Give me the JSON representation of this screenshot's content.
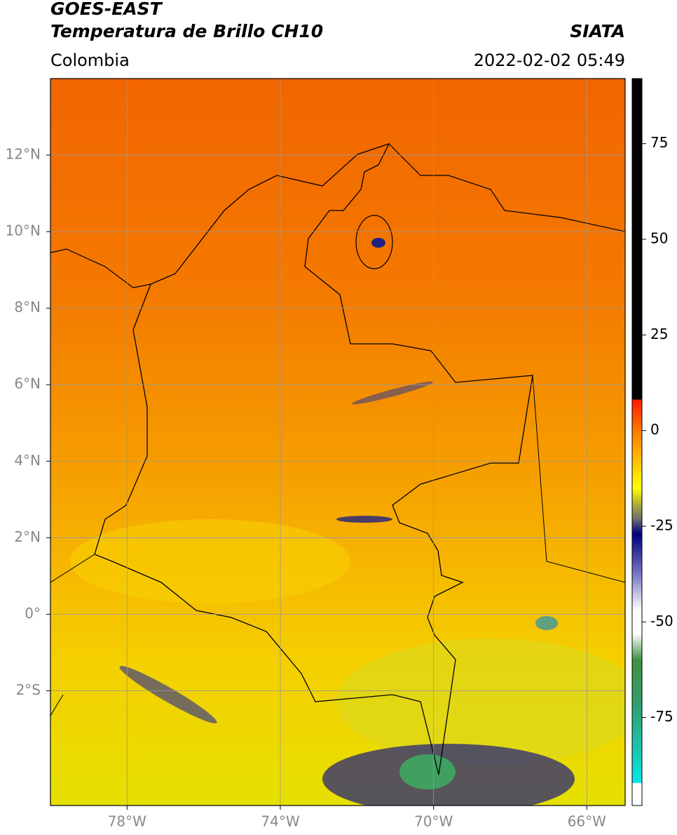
{
  "header": {
    "title": "GOES-EAST",
    "subtitle": "Temperatura de Brillo CH10",
    "source": "SIATA",
    "region": "Colombia",
    "datetime": "2022-02-02 05:49"
  },
  "map": {
    "xlim": [
      -80,
      -65
    ],
    "ylim": [
      -5,
      14
    ],
    "xticks": [
      {
        "value": -78,
        "label": "78°W"
      },
      {
        "value": -74,
        "label": "74°W"
      },
      {
        "value": -70,
        "label": "70°W"
      },
      {
        "value": -66,
        "label": "66°W"
      }
    ],
    "yticks": [
      {
        "value": 12,
        "label": "12°N"
      },
      {
        "value": 10,
        "label": "10°N"
      },
      {
        "value": 8,
        "label": "8°N"
      },
      {
        "value": 6,
        "label": "6°N"
      },
      {
        "value": 4,
        "label": "4°N"
      },
      {
        "value": 2,
        "label": "2°N"
      },
      {
        "value": 0,
        "label": "0°"
      },
      {
        "value": -2,
        "label": "2°S"
      }
    ],
    "grid": true
  },
  "colorbar": {
    "lim": [
      -98,
      92
    ],
    "ticks": [
      75,
      50,
      25,
      0,
      -25,
      -50,
      -75
    ],
    "colors": [
      {
        "value": 92,
        "color": "#000000"
      },
      {
        "value": 8.2,
        "color": "#000000"
      },
      {
        "value": 8,
        "color": "#ff1a00"
      },
      {
        "value": 0,
        "color": "#ff7a00"
      },
      {
        "value": -15,
        "color": "#ffff00"
      },
      {
        "value": -20,
        "color": "#a0a040"
      },
      {
        "value": -23,
        "color": "#707070"
      },
      {
        "value": -27,
        "color": "#000080"
      },
      {
        "value": -37,
        "color": "#7070c0"
      },
      {
        "value": -47,
        "color": "#ffffff"
      },
      {
        "value": -53,
        "color": "#ffffff"
      },
      {
        "value": -60,
        "color": "#409040"
      },
      {
        "value": -72,
        "color": "#30a070"
      },
      {
        "value": -82,
        "color": "#20c0a8"
      },
      {
        "value": -92,
        "color": "#00e8e8"
      },
      {
        "value": -92.2,
        "color": "#ffffff"
      },
      {
        "value": -98,
        "color": "#ffffff"
      }
    ]
  }
}
